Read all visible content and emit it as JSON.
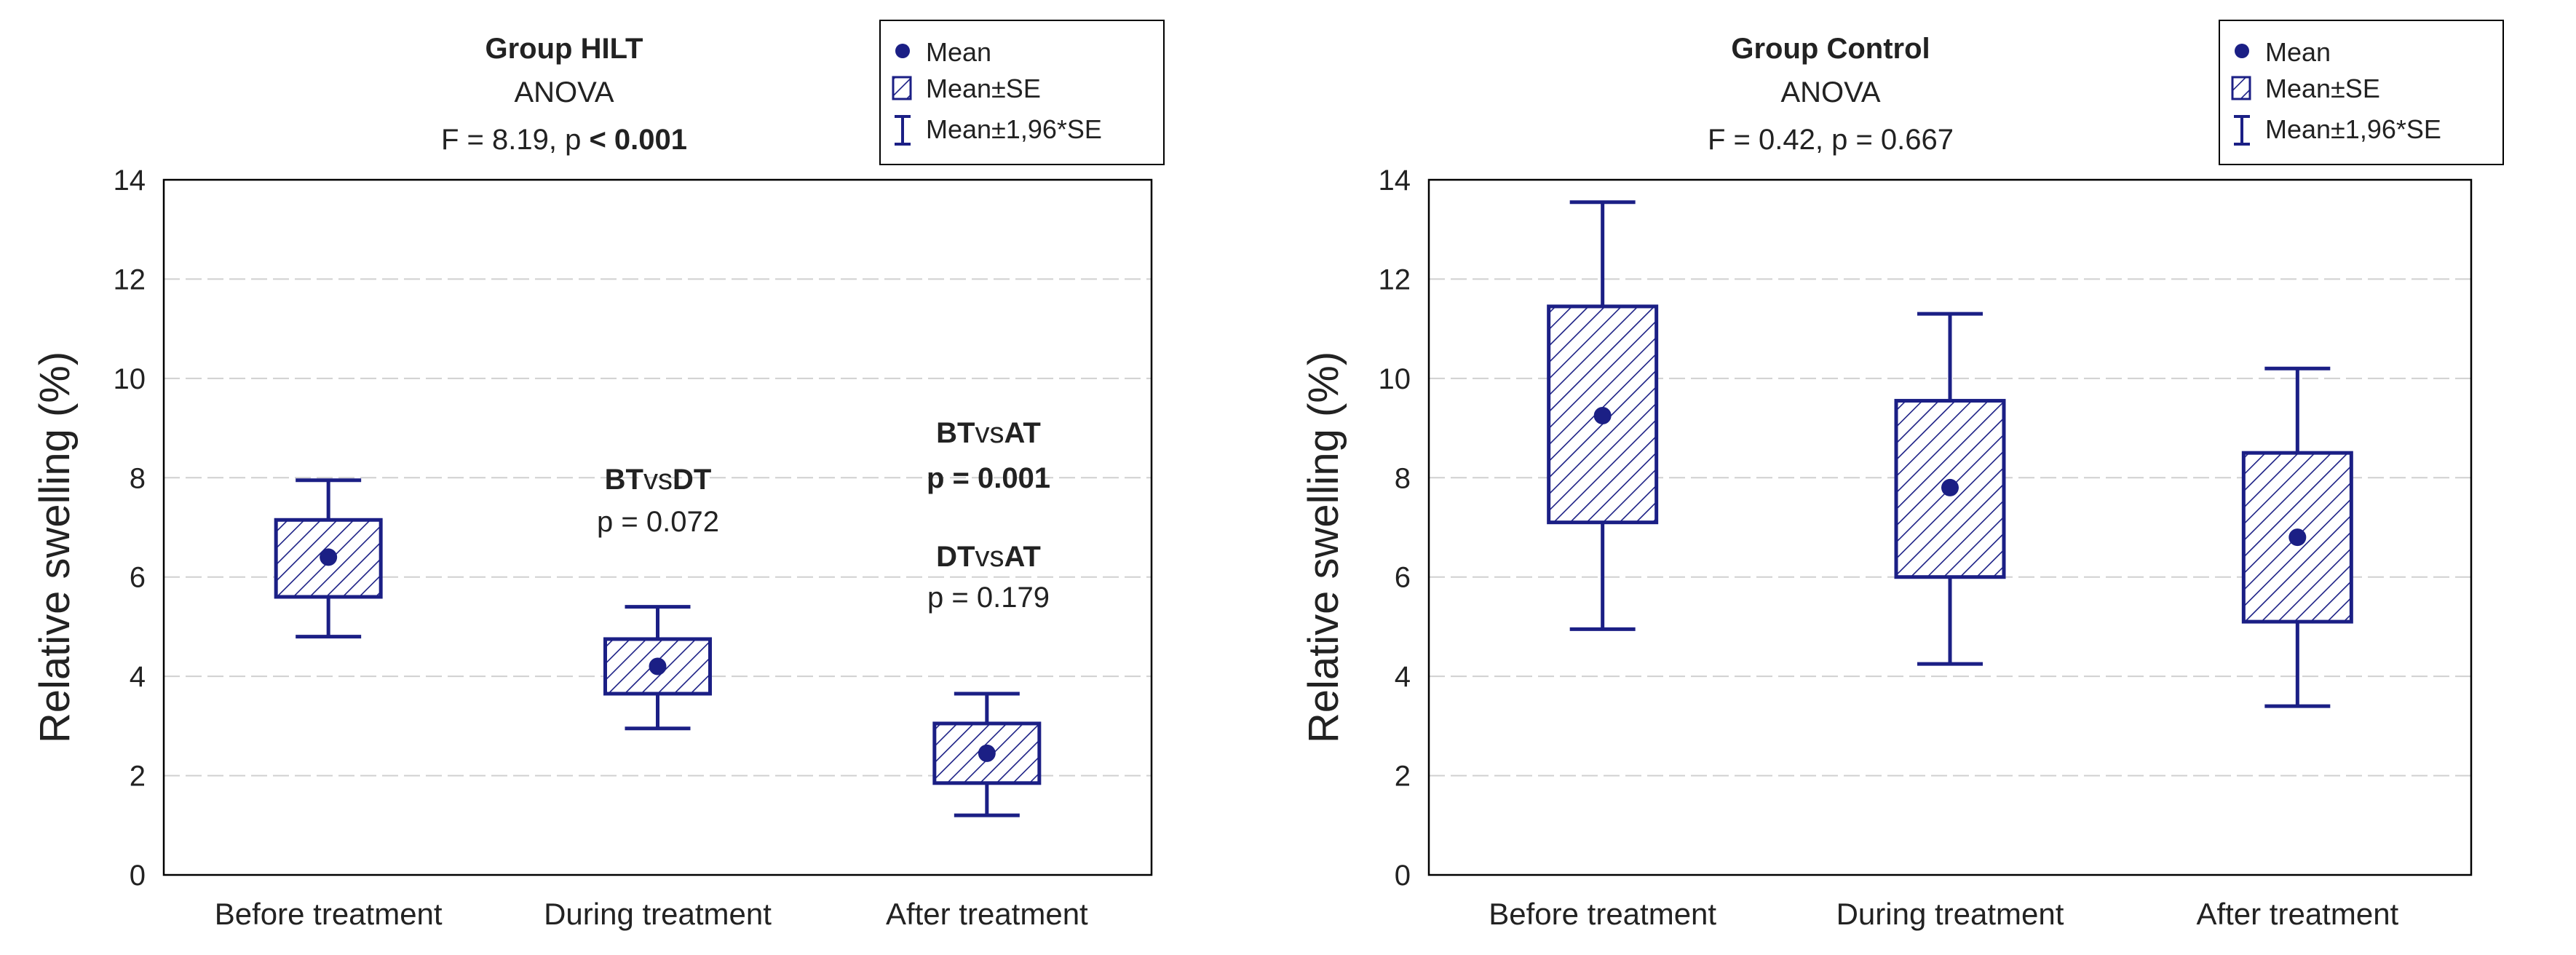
{
  "colors": {
    "mark": "#1b1f85",
    "grid": "#d0d0d0",
    "frame": "#000000",
    "text": "#222222"
  },
  "legend_labels": {
    "mean": "Mean",
    "se": "Mean±SE",
    "ci": "Mean±1,96*SE"
  },
  "chart_data": [
    {
      "type": "boxplot",
      "title": "Group HILT",
      "subtitle": "ANOVA",
      "stat_prefix": "F = 8.19, p ",
      "stat_bold": "< 0.001",
      "ylabel": "Relative swelling (%)",
      "xlabel": "",
      "ylim": [
        0,
        14
      ],
      "yticks": [
        0,
        2,
        4,
        6,
        8,
        10,
        12,
        14
      ],
      "grid": true,
      "legend_position": "top-right",
      "categories": [
        "Before treatment",
        "During treatment",
        "After treatment"
      ],
      "series": [
        {
          "name": "Mean",
          "values": [
            6.4,
            4.2,
            2.45
          ]
        },
        {
          "name": "Mean-SE",
          "values": [
            5.6,
            3.65,
            1.85
          ]
        },
        {
          "name": "Mean+SE",
          "values": [
            7.15,
            4.75,
            3.05
          ]
        },
        {
          "name": "Mean-1,96*SE",
          "values": [
            4.8,
            2.95,
            1.2
          ]
        },
        {
          "name": "Mean+1,96*SE",
          "values": [
            7.95,
            5.4,
            3.65
          ]
        }
      ],
      "annotations": [
        {
          "category": "During treatment",
          "left": "BT",
          "mid": "vs",
          "right": "DT",
          "value_label": "p = 0.072",
          "value_bold": false
        },
        {
          "category": "After treatment",
          "left": "BT",
          "mid": "vs",
          "right": "AT",
          "value_label": "p = 0.001",
          "value_bold": true
        },
        {
          "category": "After treatment",
          "left": "DT",
          "mid": "vs",
          "right": "AT",
          "value_label": "p = 0.179",
          "value_bold": false
        }
      ]
    },
    {
      "type": "boxplot",
      "title": "Group Control",
      "subtitle": "ANOVA",
      "stat_prefix": "F = 0.42, p = 0.667",
      "stat_bold": "",
      "ylabel": "Relative swelling (%)",
      "xlabel": "",
      "ylim": [
        0,
        14
      ],
      "yticks": [
        0,
        2,
        4,
        6,
        8,
        10,
        12,
        14
      ],
      "grid": true,
      "legend_position": "top-right",
      "categories": [
        "Before treatment",
        "During treatment",
        "After treatment"
      ],
      "series": [
        {
          "name": "Mean",
          "values": [
            9.25,
            7.8,
            6.8
          ]
        },
        {
          "name": "Mean-SE",
          "values": [
            7.1,
            6.0,
            5.1
          ]
        },
        {
          "name": "Mean+SE",
          "values": [
            11.45,
            9.55,
            8.5
          ]
        },
        {
          "name": "Mean-1,96*SE",
          "values": [
            4.95,
            4.25,
            3.4
          ]
        },
        {
          "name": "Mean+1,96*SE",
          "values": [
            13.55,
            11.3,
            10.2
          ]
        }
      ],
      "annotations": []
    }
  ]
}
